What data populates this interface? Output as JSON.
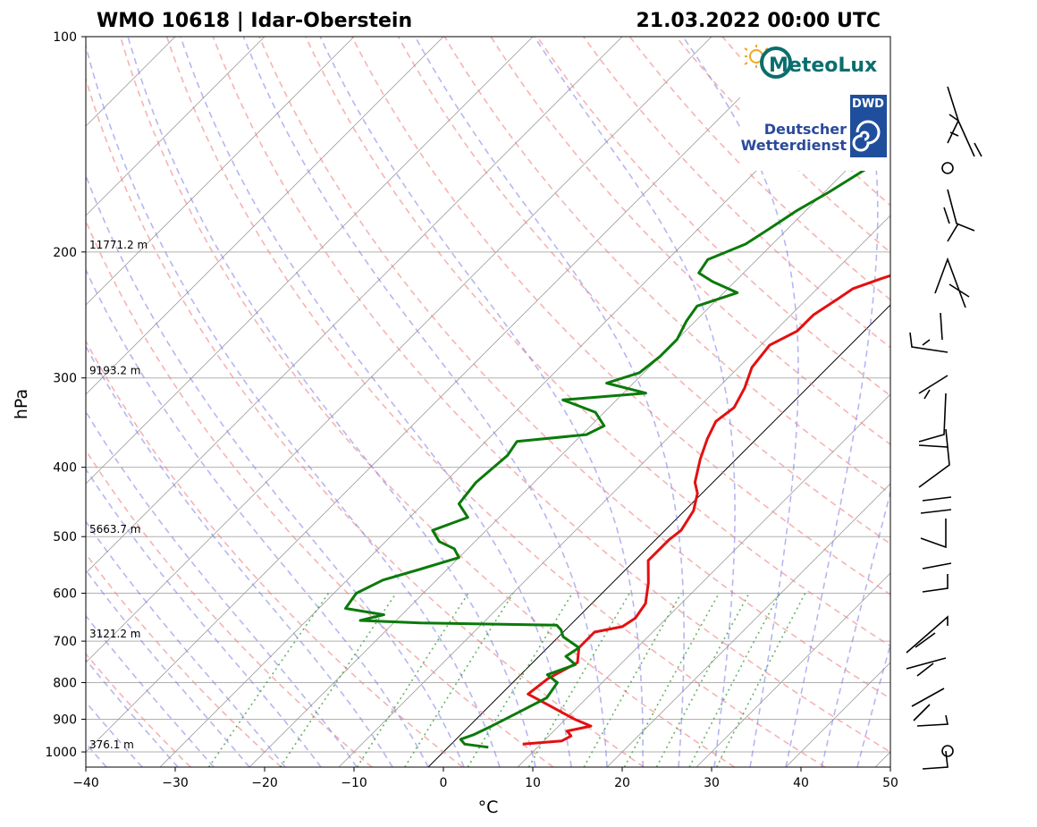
{
  "chart_data": {
    "type": "line",
    "title_left": "WMO 10618 | Idar-Oberstein",
    "title_right": "21.03.2022 00:00 UTC",
    "xlabel": "°C",
    "ylabel": "hPa",
    "xlim": [
      -40,
      50
    ],
    "ylim_hpa": [
      1050,
      100
    ],
    "x_ticks": [
      -40,
      -30,
      -20,
      -10,
      0,
      10,
      20,
      30,
      40,
      50
    ],
    "x_tick_labels": [
      "−40",
      "−30",
      "−20",
      "−10",
      "0",
      "10",
      "20",
      "30",
      "40",
      "50"
    ],
    "y_ticks": [
      100,
      200,
      300,
      400,
      500,
      600,
      700,
      800,
      900,
      1000
    ],
    "y_tick_labels": [
      "100",
      "200",
      "300",
      "400",
      "500",
      "600",
      "700",
      "800",
      "900",
      "1000"
    ],
    "height_labels": [
      {
        "p": 200,
        "text": "11771.2 m"
      },
      {
        "p": 300,
        "text": "9193.2 m"
      },
      {
        "p": 500,
        "text": "5663.7 m"
      },
      {
        "p": 700,
        "text": "3121.2 m"
      },
      {
        "p": 1000,
        "text": "376.1 m"
      }
    ],
    "series": [
      {
        "name": "Temperature",
        "color": "#e31010",
        "points": [
          [
            975,
            8.0
          ],
          [
            965,
            12.0
          ],
          [
            950,
            12.5
          ],
          [
            935,
            11.5
          ],
          [
            920,
            13.6
          ],
          [
            900,
            11.0
          ],
          [
            860,
            6.5
          ],
          [
            830,
            3.0
          ],
          [
            790,
            3.5
          ],
          [
            750,
            5.0
          ],
          [
            715,
            3.5
          ],
          [
            680,
            3.5
          ],
          [
            668,
            6.0
          ],
          [
            650,
            6.5
          ],
          [
            620,
            6.0
          ],
          [
            580,
            4.0
          ],
          [
            540,
            1.5
          ],
          [
            505,
            1.5
          ],
          [
            490,
            1.8
          ],
          [
            460,
            1.0
          ],
          [
            435,
            -0.5
          ],
          [
            420,
            -2.0
          ],
          [
            390,
            -4.0
          ],
          [
            365,
            -5.5
          ],
          [
            345,
            -6.5
          ],
          [
            330,
            -6.0
          ],
          [
            310,
            -7.0
          ],
          [
            290,
            -8.5
          ],
          [
            270,
            -9.0
          ],
          [
            258,
            -7.5
          ],
          [
            245,
            -7.5
          ],
          [
            232,
            -6.5
          ],
          [
            225,
            -6.0
          ],
          [
            218,
            -4.0
          ],
          [
            212,
            -2.0
          ],
          [
            210,
            1.5
          ],
          [
            204,
            2.0
          ],
          [
            200,
            1.5
          ],
          [
            188,
            5.5
          ],
          [
            180,
            6.5
          ],
          [
            170,
            8.5
          ],
          [
            160,
            9.5
          ],
          [
            150,
            11.0
          ],
          [
            140,
            13.0
          ],
          [
            130,
            15.0
          ],
          [
            120,
            17.5
          ],
          [
            110,
            20.5
          ],
          [
            104,
            23.0
          ]
        ]
      },
      {
        "name": "Dewpoint",
        "color": "#0a7a0a",
        "points": [
          [
            985,
            4.5
          ],
          [
            975,
            1.5
          ],
          [
            960,
            0.5
          ],
          [
            945,
            1.5
          ],
          [
            920,
            2.5
          ],
          [
            880,
            4.0
          ],
          [
            840,
            5.5
          ],
          [
            800,
            5.0
          ],
          [
            780,
            3.0
          ],
          [
            755,
            5.0
          ],
          [
            735,
            3.0
          ],
          [
            715,
            3.5
          ],
          [
            690,
            0.5
          ],
          [
            675,
            -0.5
          ],
          [
            665,
            -1.5
          ],
          [
            660,
            -17.0
          ],
          [
            655,
            -24.0
          ],
          [
            643,
            -22.0
          ],
          [
            630,
            -27.0
          ],
          [
            600,
            -27.5
          ],
          [
            575,
            -26.0
          ],
          [
            555,
            -23.0
          ],
          [
            535,
            -20.0
          ],
          [
            520,
            -21.5
          ],
          [
            508,
            -24.0
          ],
          [
            490,
            -26.0
          ],
          [
            470,
            -23.5
          ],
          [
            450,
            -26.0
          ],
          [
            420,
            -26.5
          ],
          [
            385,
            -26.0
          ],
          [
            368,
            -26.5
          ],
          [
            360,
            -19.5
          ],
          [
            350,
            -18.5
          ],
          [
            335,
            -21.0
          ],
          [
            322,
            -26.0
          ],
          [
            315,
            -17.5
          ],
          [
            305,
            -23.0
          ],
          [
            295,
            -20.5
          ],
          [
            280,
            -20.0
          ],
          [
            265,
            -20.0
          ],
          [
            250,
            -21.0
          ],
          [
            238,
            -21.5
          ],
          [
            228,
            -18.5
          ],
          [
            220,
            -22.5
          ],
          [
            214,
            -25.0
          ],
          [
            205,
            -25.5
          ],
          [
            195,
            -23.0
          ],
          [
            185,
            -22.0
          ],
          [
            175,
            -21.0
          ],
          [
            165,
            -19.5
          ],
          [
            150,
            -17.5
          ],
          [
            140,
            -16.0
          ],
          [
            130,
            -14.0
          ],
          [
            120,
            -11.5
          ],
          [
            110,
            -9.5
          ],
          [
            104,
            -9.0
          ]
        ]
      }
    ],
    "background_lines": {
      "isotherms_skewed": "grey",
      "dry_adiabats": "#f08080",
      "moist_adiabats": "#8080f0",
      "mixing_ratio": "#40a040",
      "zero_isotherm": "black"
    },
    "wind_barbs_column": true,
    "logos": {
      "meteolux": "MeteoLux",
      "dwd_badge": "DWD",
      "dwd_line1": "Deutscher",
      "dwd_line2": "Wetterdienst"
    }
  }
}
